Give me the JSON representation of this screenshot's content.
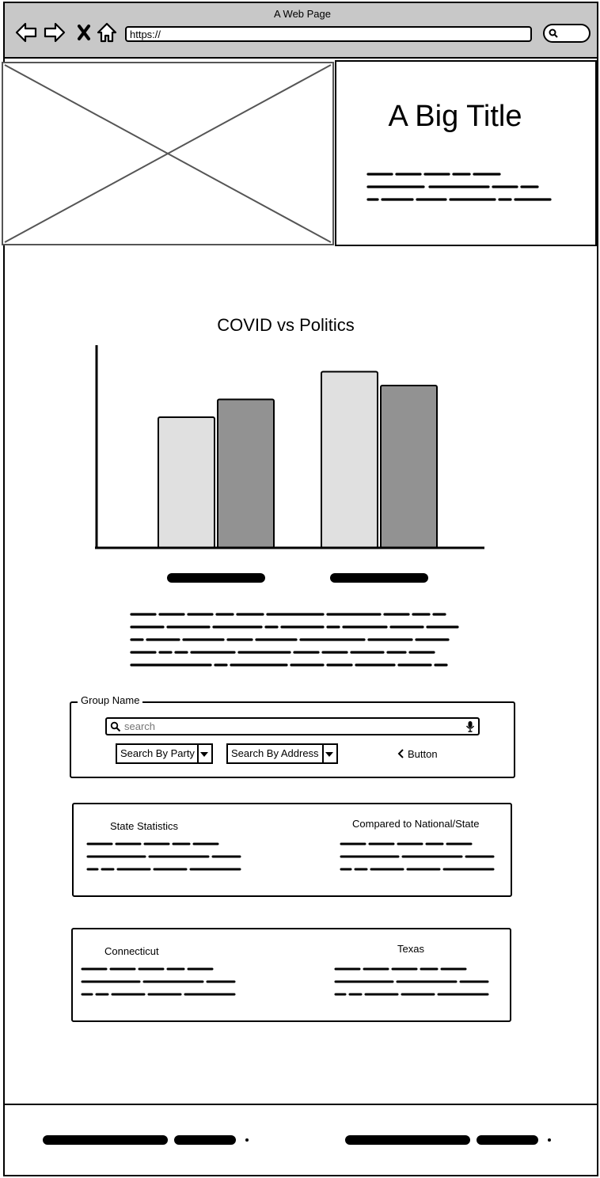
{
  "browser": {
    "window_title": "A Web Page",
    "url": "https://",
    "icons": [
      "back-arrow-icon",
      "forward-arrow-icon",
      "close-icon",
      "home-icon",
      "search-icon"
    ]
  },
  "hero": {
    "image_placeholder": "image-placeholder",
    "title": "A Big Title"
  },
  "chart_data": {
    "type": "bar",
    "title": "COVID vs Politics",
    "xlabel": "",
    "ylabel": "",
    "categories": [
      "",
      ""
    ],
    "series": [
      {
        "values": [
          66,
          89
        ],
        "color": "#e0e0e0"
      },
      {
        "values": [
          75,
          82
        ],
        "color": "#929292"
      }
    ],
    "ylim": [
      0,
      100
    ],
    "grid": false
  },
  "group": {
    "legend": "Group Name",
    "search": {
      "placeholder": "search",
      "value": ""
    },
    "dropdown_party": "Search By Party",
    "dropdown_address": "Search By Address",
    "button_label": "Button"
  },
  "stats": {
    "left_title": "State Statistics",
    "right_title": "Compared to National/State"
  },
  "compare": {
    "left_title": "Connecticut",
    "right_title": "Texas"
  },
  "colors": {
    "chrome": "#c8c8c8",
    "bar_light": "#e0e0e0",
    "bar_dark": "#929292"
  }
}
